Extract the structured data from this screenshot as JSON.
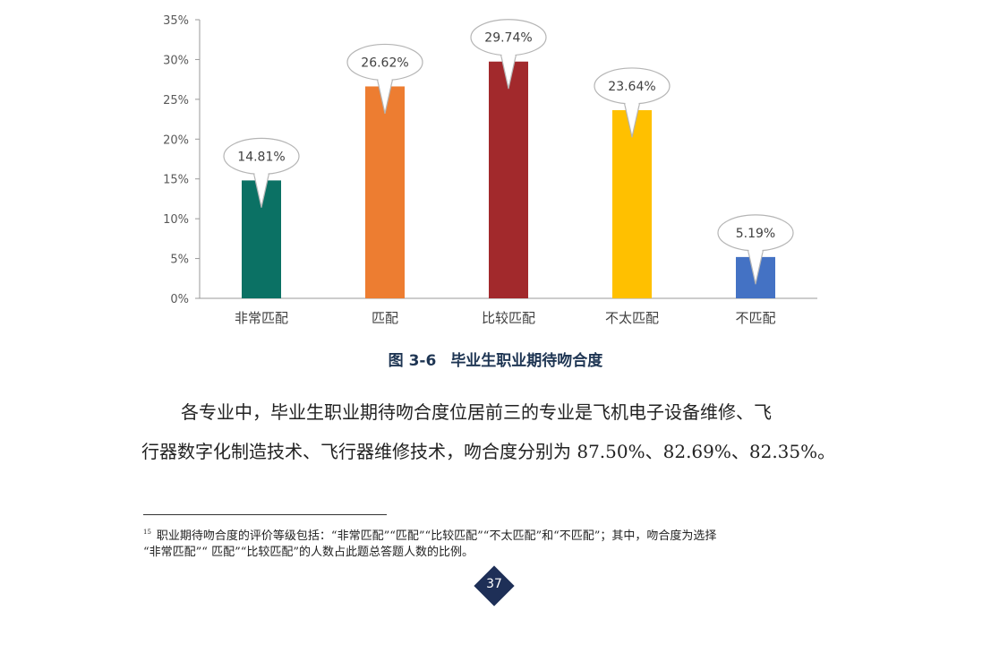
{
  "chart_data": {
    "type": "bar",
    "categories": [
      "非常匹配",
      "匹配",
      "比较匹配",
      "不太匹配",
      "不匹配"
    ],
    "values": [
      14.81,
      26.62,
      29.74,
      23.64,
      5.19
    ],
    "value_labels": [
      "14.81%",
      "26.62%",
      "29.74%",
      "23.64%",
      "5.19%"
    ],
    "colors": [
      "#0b7164",
      "#ed7d31",
      "#a2292c",
      "#ffc000",
      "#4472c4"
    ],
    "y_ticks": [
      "0%",
      "5%",
      "10%",
      "15%",
      "20%",
      "25%",
      "30%",
      "35%"
    ],
    "ylim": [
      0,
      35
    ],
    "grid": false,
    "legend": "none"
  },
  "caption": {
    "number": "图 3-6",
    "title": "毕业生职业期待吻合度"
  },
  "paragraph": {
    "line1": "各专业中，毕业生职业期待吻合度位居前三的专业是飞机电子设备维修、飞",
    "line2": "行器数字化制造技术、飞行器维修技术，吻合度分别为 87.50%、82.69%、82.35%。"
  },
  "footnote": {
    "marker": "15",
    "line1": "职业期待吻合度的评价等级包括：“非常匹配”“匹配”“比较匹配”“不太匹配”和“不匹配”；其中，吻合度为选择",
    "line2": "“非常匹配”“ 匹配”“比较匹配”的人数占此题总答题人数的比例。"
  },
  "page_number": "37"
}
